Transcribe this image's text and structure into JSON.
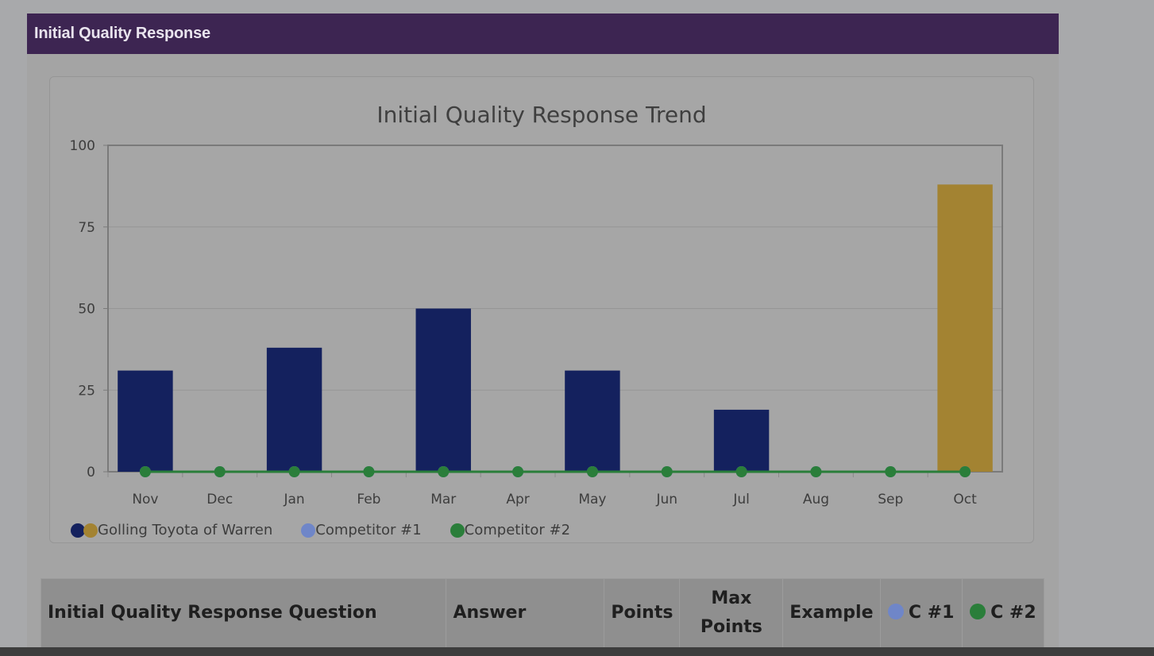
{
  "panel": {
    "header": "Initial Quality Response"
  },
  "colors": {
    "header_bg": "#3d2552",
    "dealer": "#14215e",
    "dealer_current": "#a38332",
    "competitor1": "#6f86c8",
    "competitor2": "#2a7e3a"
  },
  "chart_data": {
    "type": "bar",
    "title": "Initial Quality Response Trend",
    "categories": [
      "Nov",
      "Dec",
      "Jan",
      "Feb",
      "Mar",
      "Apr",
      "May",
      "Jun",
      "Jul",
      "Aug",
      "Sep",
      "Oct"
    ],
    "ylim": [
      0,
      100
    ],
    "yticks": [
      0,
      25,
      50,
      75,
      100
    ],
    "grid": true,
    "series": [
      {
        "name": "Golling Toyota of Warren",
        "type": "bar",
        "values": [
          31,
          0,
          38,
          0,
          50,
          0,
          31,
          0,
          19,
          0,
          0,
          88
        ],
        "highlight_last": true
      },
      {
        "name": "Competitor #1",
        "type": "line",
        "values": [
          0,
          0,
          0,
          0,
          0,
          0,
          0,
          0,
          0,
          0,
          0,
          0
        ]
      },
      {
        "name": "Competitor #2",
        "type": "line",
        "values": [
          0,
          0,
          0,
          0,
          0,
          0,
          0,
          0,
          0,
          0,
          0,
          0
        ]
      }
    ],
    "legend_position": "bottom-left"
  },
  "legend": {
    "dealer": "Golling Toyota of Warren",
    "competitor1": "Competitor #1",
    "competitor2": "Competitor #2"
  },
  "table": {
    "headers": {
      "question": "Initial Quality Response Question",
      "answer": "Answer",
      "points": "Points",
      "max_points_1": "Max",
      "max_points_2": "Points",
      "example": "Example",
      "c1": "C #1",
      "c2": "C #2"
    }
  }
}
